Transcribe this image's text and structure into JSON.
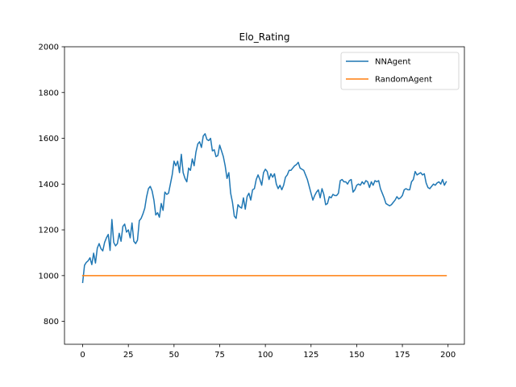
{
  "chart_data": {
    "type": "line",
    "title": "Elo_Rating",
    "xlabel": "",
    "ylabel": "",
    "xlim": [
      -9.95,
      208.95
    ],
    "ylim": [
      700,
      2000
    ],
    "xticks": [
      0,
      25,
      50,
      75,
      100,
      125,
      150,
      175,
      200
    ],
    "yticks": [
      800,
      1000,
      1200,
      1400,
      1600,
      1800,
      2000
    ],
    "grid": false,
    "legend_position": "top-right",
    "series": [
      {
        "name": "NNAgent",
        "color": "#1f77b4",
        "points": [
          [
            0,
            970
          ],
          [
            1,
            1045
          ],
          [
            2,
            1058
          ],
          [
            3,
            1065
          ],
          [
            4,
            1078
          ],
          [
            5,
            1048
          ],
          [
            6,
            1098
          ],
          [
            7,
            1055
          ],
          [
            8,
            1120
          ],
          [
            9,
            1140
          ],
          [
            10,
            1118
          ],
          [
            11,
            1108
          ],
          [
            12,
            1145
          ],
          [
            13,
            1165
          ],
          [
            14,
            1180
          ],
          [
            15,
            1110
          ],
          [
            16,
            1245
          ],
          [
            17,
            1145
          ],
          [
            18,
            1130
          ],
          [
            19,
            1140
          ],
          [
            20,
            1185
          ],
          [
            21,
            1150
          ],
          [
            22,
            1215
          ],
          [
            23,
            1225
          ],
          [
            24,
            1190
          ],
          [
            25,
            1200
          ],
          [
            26,
            1165
          ],
          [
            27,
            1230
          ],
          [
            28,
            1150
          ],
          [
            29,
            1140
          ],
          [
            30,
            1155
          ],
          [
            31,
            1240
          ],
          [
            32,
            1250
          ],
          [
            33,
            1270
          ],
          [
            34,
            1295
          ],
          [
            35,
            1345
          ],
          [
            36,
            1380
          ],
          [
            37,
            1390
          ],
          [
            38,
            1370
          ],
          [
            39,
            1330
          ],
          [
            40,
            1265
          ],
          [
            41,
            1275
          ],
          [
            42,
            1255
          ],
          [
            43,
            1315
          ],
          [
            44,
            1285
          ],
          [
            45,
            1365
          ],
          [
            46,
            1355
          ],
          [
            47,
            1360
          ],
          [
            48,
            1400
          ],
          [
            49,
            1440
          ],
          [
            50,
            1500
          ],
          [
            51,
            1480
          ],
          [
            52,
            1500
          ],
          [
            53,
            1450
          ],
          [
            54,
            1530
          ],
          [
            55,
            1450
          ],
          [
            56,
            1425
          ],
          [
            57,
            1410
          ],
          [
            58,
            1470
          ],
          [
            59,
            1460
          ],
          [
            60,
            1510
          ],
          [
            61,
            1480
          ],
          [
            62,
            1540
          ],
          [
            63,
            1575
          ],
          [
            64,
            1585
          ],
          [
            65,
            1560
          ],
          [
            66,
            1610
          ],
          [
            67,
            1620
          ],
          [
            68,
            1595
          ],
          [
            69,
            1590
          ],
          [
            70,
            1600
          ],
          [
            71,
            1545
          ],
          [
            72,
            1550
          ],
          [
            73,
            1520
          ],
          [
            74,
            1525
          ],
          [
            75,
            1570
          ],
          [
            76,
            1545
          ],
          [
            77,
            1520
          ],
          [
            78,
            1480
          ],
          [
            79,
            1425
          ],
          [
            80,
            1450
          ],
          [
            81,
            1360
          ],
          [
            82,
            1320
          ],
          [
            83,
            1260
          ],
          [
            84,
            1250
          ],
          [
            85,
            1310
          ],
          [
            86,
            1300
          ],
          [
            87,
            1295
          ],
          [
            88,
            1340
          ],
          [
            89,
            1290
          ],
          [
            90,
            1345
          ],
          [
            91,
            1360
          ],
          [
            92,
            1330
          ],
          [
            93,
            1375
          ],
          [
            94,
            1380
          ],
          [
            95,
            1420
          ],
          [
            96,
            1440
          ],
          [
            97,
            1420
          ],
          [
            98,
            1395
          ],
          [
            99,
            1450
          ],
          [
            100,
            1465
          ],
          [
            101,
            1455
          ],
          [
            102,
            1420
          ],
          [
            103,
            1445
          ],
          [
            104,
            1430
          ],
          [
            105,
            1445
          ],
          [
            106,
            1400
          ],
          [
            107,
            1380
          ],
          [
            108,
            1395
          ],
          [
            109,
            1375
          ],
          [
            110,
            1395
          ],
          [
            111,
            1430
          ],
          [
            112,
            1440
          ],
          [
            113,
            1460
          ],
          [
            114,
            1460
          ],
          [
            115,
            1470
          ],
          [
            116,
            1480
          ],
          [
            117,
            1485
          ],
          [
            118,
            1495
          ],
          [
            119,
            1470
          ],
          [
            120,
            1465
          ],
          [
            121,
            1460
          ],
          [
            122,
            1440
          ],
          [
            123,
            1420
          ],
          [
            124,
            1390
          ],
          [
            125,
            1360
          ],
          [
            126,
            1330
          ],
          [
            127,
            1350
          ],
          [
            128,
            1365
          ],
          [
            129,
            1375
          ],
          [
            130,
            1340
          ],
          [
            131,
            1380
          ],
          [
            132,
            1355
          ],
          [
            133,
            1310
          ],
          [
            134,
            1315
          ],
          [
            135,
            1345
          ],
          [
            136,
            1340
          ],
          [
            137,
            1355
          ],
          [
            138,
            1350
          ],
          [
            139,
            1350
          ],
          [
            140,
            1360
          ],
          [
            141,
            1415
          ],
          [
            142,
            1420
          ],
          [
            143,
            1410
          ],
          [
            144,
            1410
          ],
          [
            145,
            1400
          ],
          [
            146,
            1415
          ],
          [
            147,
            1420
          ],
          [
            148,
            1365
          ],
          [
            149,
            1375
          ],
          [
            150,
            1395
          ],
          [
            151,
            1400
          ],
          [
            152,
            1395
          ],
          [
            153,
            1410
          ],
          [
            154,
            1400
          ],
          [
            155,
            1415
          ],
          [
            156,
            1410
          ],
          [
            157,
            1385
          ],
          [
            158,
            1410
          ],
          [
            159,
            1395
          ],
          [
            160,
            1415
          ],
          [
            161,
            1410
          ],
          [
            162,
            1415
          ],
          [
            163,
            1380
          ],
          [
            164,
            1360
          ],
          [
            165,
            1340
          ],
          [
            166,
            1315
          ],
          [
            167,
            1310
          ],
          [
            168,
            1305
          ],
          [
            169,
            1310
          ],
          [
            170,
            1320
          ],
          [
            171,
            1330
          ],
          [
            172,
            1345
          ],
          [
            173,
            1335
          ],
          [
            174,
            1340
          ],
          [
            175,
            1350
          ],
          [
            176,
            1375
          ],
          [
            177,
            1380
          ],
          [
            178,
            1375
          ],
          [
            179,
            1375
          ],
          [
            180,
            1410
          ],
          [
            181,
            1420
          ],
          [
            182,
            1455
          ],
          [
            183,
            1440
          ],
          [
            184,
            1445
          ],
          [
            185,
            1450
          ],
          [
            186,
            1440
          ],
          [
            187,
            1445
          ],
          [
            188,
            1405
          ],
          [
            189,
            1385
          ],
          [
            190,
            1380
          ],
          [
            191,
            1390
          ],
          [
            192,
            1400
          ],
          [
            193,
            1395
          ],
          [
            194,
            1405
          ],
          [
            195,
            1410
          ],
          [
            196,
            1400
          ],
          [
            197,
            1420
          ],
          [
            198,
            1395
          ],
          [
            199,
            1410
          ]
        ]
      },
      {
        "name": "RandomAgent",
        "color": "#ff7f0e",
        "points": [
          [
            0,
            1000
          ],
          [
            199,
            1000
          ]
        ]
      }
    ]
  }
}
